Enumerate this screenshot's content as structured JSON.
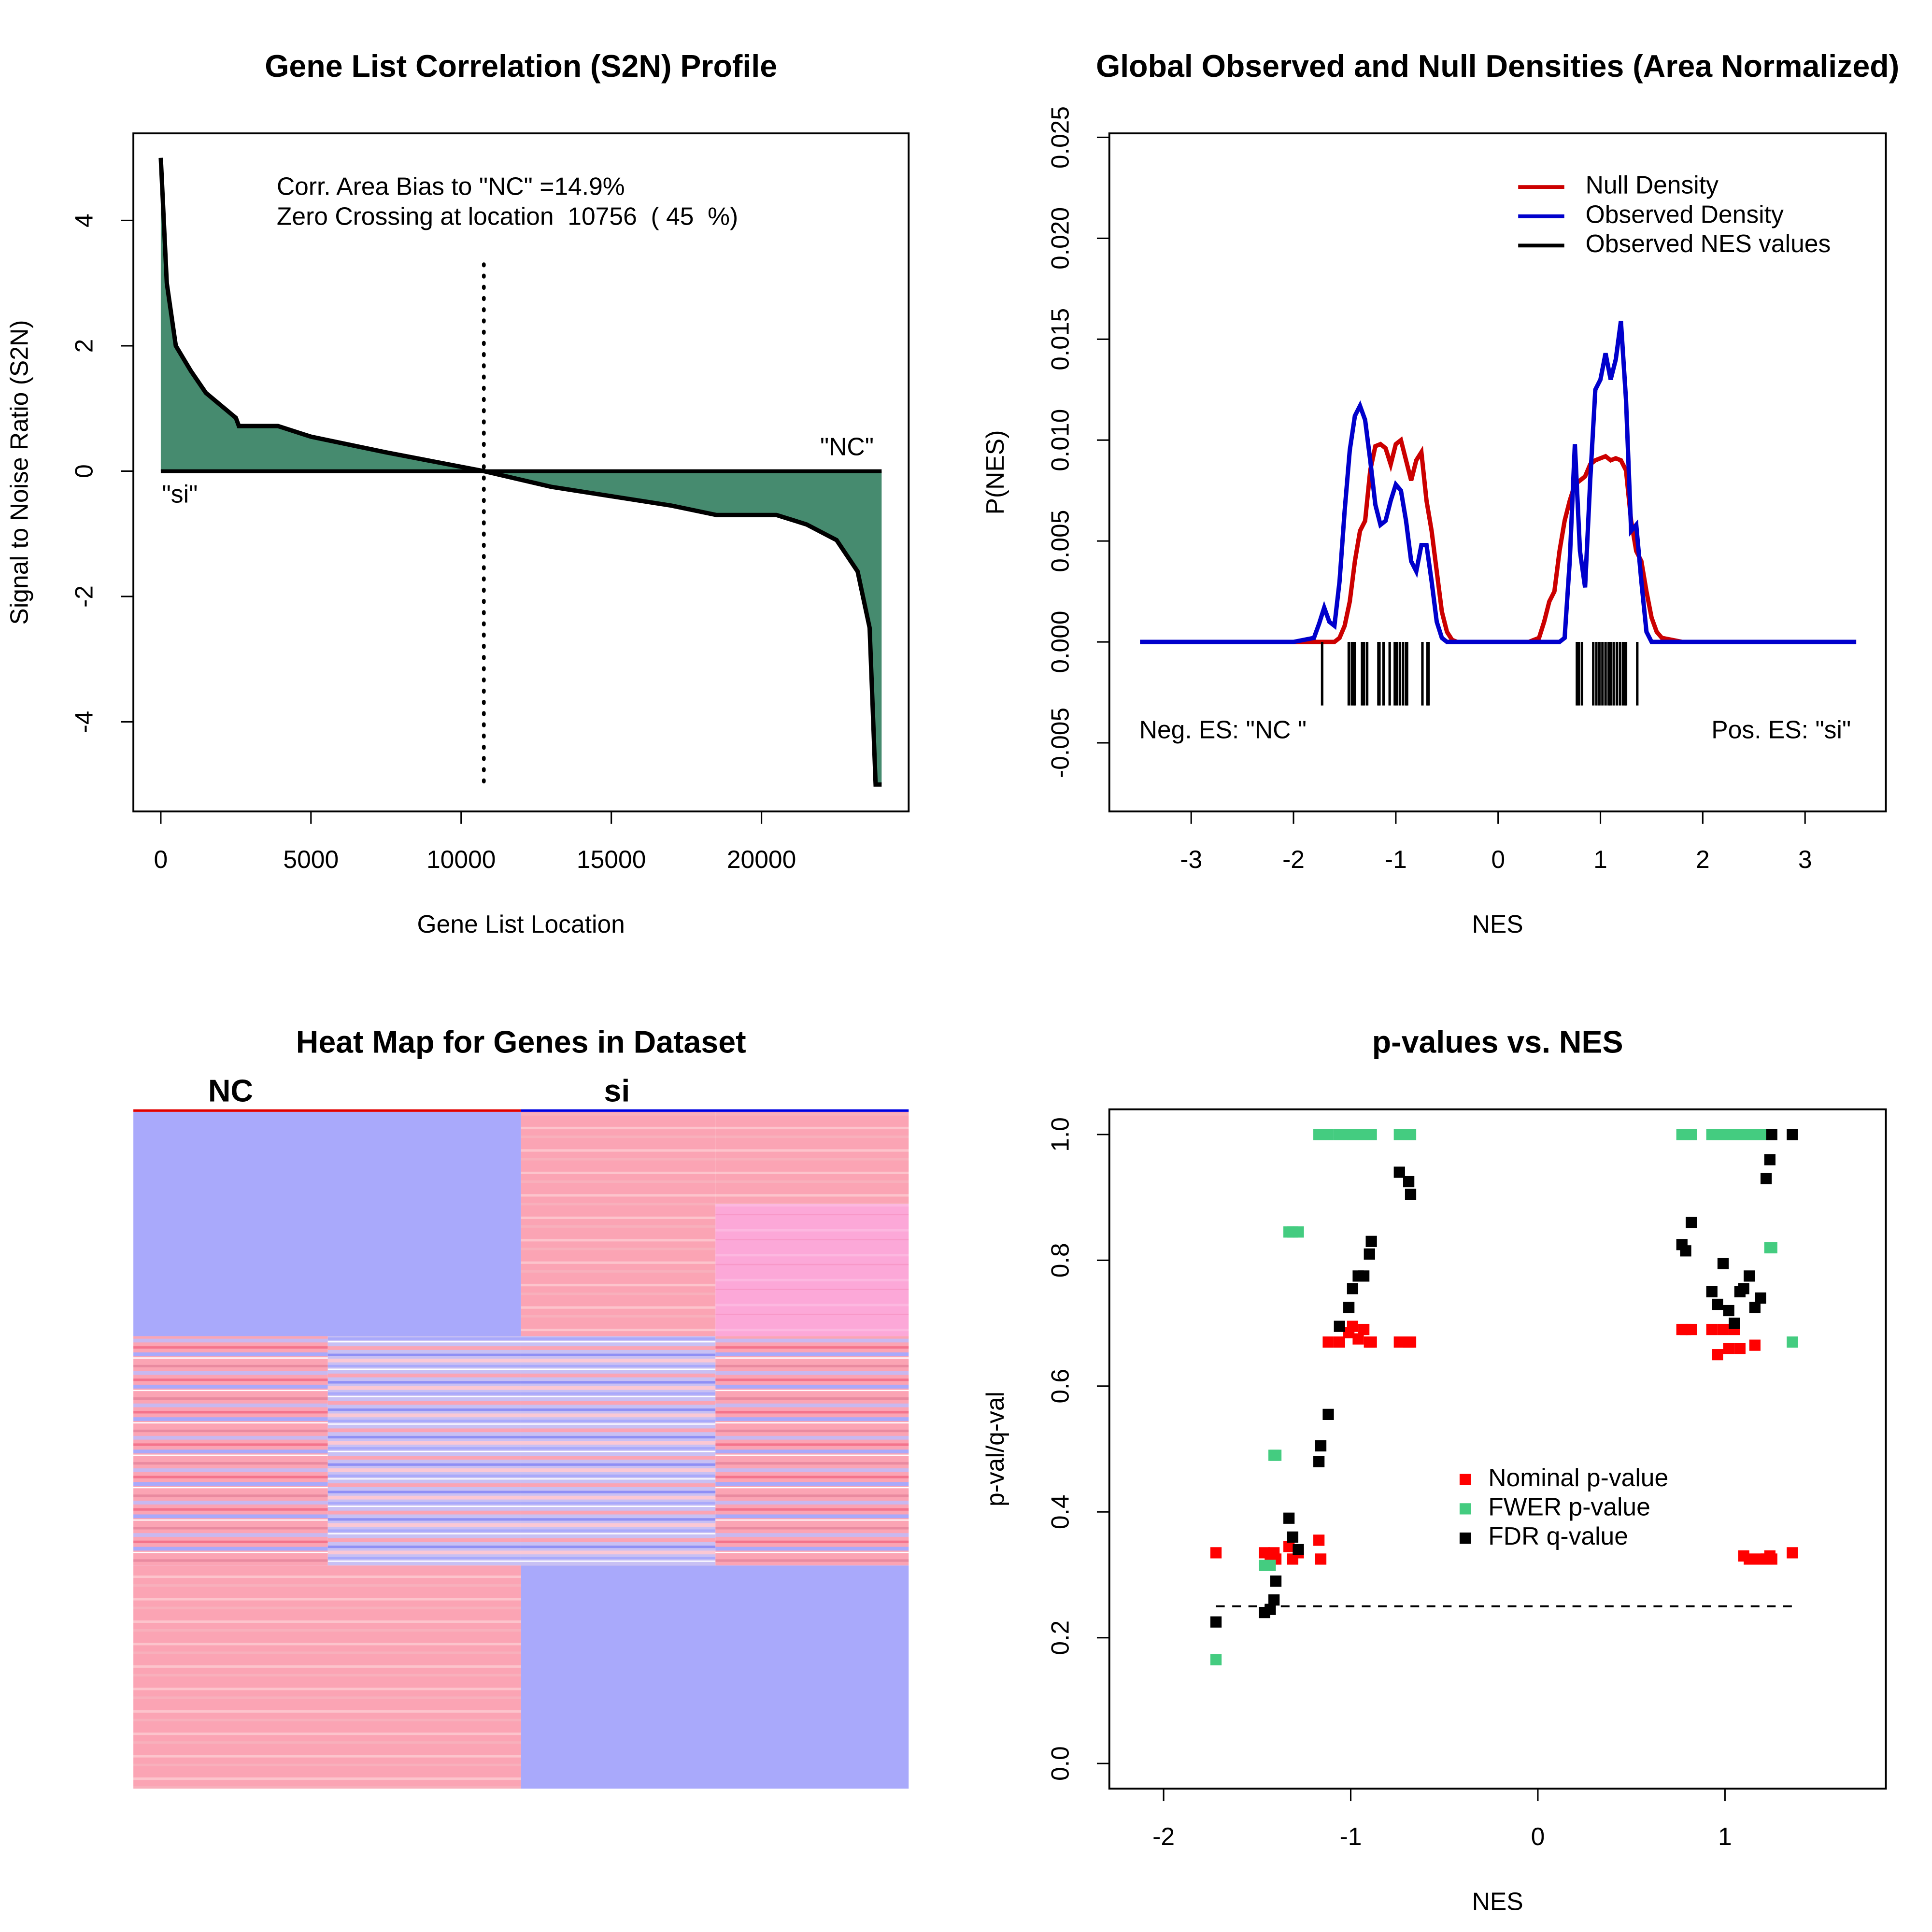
{
  "chart_data": [
    {
      "type": "area",
      "title": "Gene List Correlation (S2N) Profile",
      "xlabel": "Gene List Location",
      "ylabel": "Signal to Noise Ratio (S2N)",
      "annotations": [
        "Corr. Area Bias to \"NC\" =14.9%",
        "Zero Crossing at location  10756  ( 45  %)"
      ],
      "labels": [
        "\"NC\"",
        "\"si\""
      ],
      "zero_crossing": 10756,
      "color": "#468b6f",
      "x": [
        0,
        200,
        500,
        1000,
        1500,
        2500,
        2600,
        3900,
        5000,
        7500,
        10756,
        13000,
        15000,
        17000,
        18500,
        20500,
        21500,
        22500,
        23200,
        23600,
        23800,
        24000
      ],
      "values": [
        5,
        3.0,
        2.0,
        1.6,
        1.25,
        0.85,
        0.72,
        0.72,
        0.55,
        0.3,
        0,
        -0.25,
        -0.4,
        -0.55,
        -0.7,
        -0.7,
        -0.85,
        -1.1,
        -1.6,
        -2.5,
        -5,
        -5
      ],
      "xlim": [
        -913,
        24900
      ],
      "ylim": [
        -5.43,
        5.39
      ],
      "xticks": [
        0,
        5000,
        10000,
        15000,
        20000
      ],
      "yticks": [
        -4,
        -2,
        0,
        2,
        4
      ]
    },
    {
      "type": "line",
      "title": "Global Observed and Null Densities (Area Normalized)",
      "xlabel": "NES",
      "ylabel": "P(NES)",
      "annotations": [
        "Neg. ES: \"NC \"",
        "Pos. ES: \"si\""
      ],
      "x": [
        -3.5,
        -2.0,
        -1.8,
        -1.75,
        -1.7,
        -1.65,
        -1.6,
        -1.55,
        -1.5,
        -1.45,
        -1.4,
        -1.35,
        -1.3,
        -1.25,
        -1.2,
        -1.15,
        -1.1,
        -1.05,
        -1.0,
        -0.95,
        -0.9,
        -0.85,
        -0.8,
        -0.75,
        -0.7,
        -0.65,
        -0.6,
        -0.55,
        -0.5,
        -0.45,
        -0.4,
        -0.3,
        0.3,
        0.4,
        0.45,
        0.5,
        0.55,
        0.6,
        0.65,
        0.7,
        0.75,
        0.8,
        0.85,
        0.9,
        0.95,
        1.0,
        1.05,
        1.1,
        1.15,
        1.2,
        1.25,
        1.3,
        1.35,
        1.4,
        1.45,
        1.5,
        1.55,
        1.6,
        1.7,
        1.8,
        2.0,
        3.5
      ],
      "series": [
        {
          "name": "Null Density",
          "color": "#cc0000",
          "values": [
            0,
            0,
            0,
            0,
            0,
            0,
            0,
            0.0002,
            0.0008,
            0.002,
            0.004,
            0.0055,
            0.006,
            0.0085,
            0.0097,
            0.0098,
            0.0096,
            0.0088,
            0.0098,
            0.01,
            0.009,
            0.008,
            0.009,
            0.0094,
            0.007,
            0.0055,
            0.0035,
            0.0015,
            0.0005,
            0.0001,
            0,
            0,
            0,
            0.0002,
            0.001,
            0.002,
            0.0025,
            0.0045,
            0.006,
            0.007,
            0.0078,
            0.008,
            0.0082,
            0.0088,
            0.009,
            0.0091,
            0.0092,
            0.009,
            0.0091,
            0.009,
            0.0085,
            0.006,
            0.0045,
            0.004,
            0.0025,
            0.0012,
            0.0005,
            0.0002,
            0.0001,
            0,
            0,
            0
          ]
        },
        {
          "name": "Observed Density",
          "color": "#0000cc",
          "values": [
            0,
            0,
            0.0002,
            0.0009,
            0.0017,
            0.001,
            0.0008,
            0.003,
            0.0065,
            0.0095,
            0.0112,
            0.0117,
            0.011,
            0.009,
            0.0068,
            0.0058,
            0.006,
            0.007,
            0.0078,
            0.0075,
            0.006,
            0.004,
            0.0035,
            0.0048,
            0.0048,
            0.003,
            0.001,
            0.0002,
            0,
            0,
            0,
            0,
            0,
            0,
            0,
            0,
            0,
            0,
            0.0002,
            0.004,
            0.0098,
            0.0045,
            0.0027,
            0.008,
            0.0125,
            0.013,
            0.0143,
            0.013,
            0.014,
            0.0159,
            0.012,
            0.0055,
            0.0058,
            0.003,
            0.0005,
            0,
            0,
            0,
            0,
            0,
            0,
            0
          ]
        }
      ],
      "rug": {
        "name": "Observed NES values",
        "color": "#000000",
        "values": [
          -1.72,
          -1.46,
          -1.43,
          -1.41,
          -1.4,
          -1.33,
          -1.31,
          -1.28,
          -1.17,
          -1.16,
          -1.12,
          -1.06,
          -1.01,
          -0.99,
          -0.96,
          -0.93,
          -0.9,
          -0.89,
          -0.74,
          -0.69,
          -0.68,
          0.77,
          0.79,
          0.82,
          0.93,
          0.96,
          0.99,
          1.02,
          1.05,
          1.08,
          1.1,
          1.13,
          1.16,
          1.19,
          1.22,
          1.24,
          1.25,
          1.36
        ]
      },
      "xlim": [
        -3.8,
        3.79
      ],
      "ylim": [
        -0.0084,
        0.0252
      ],
      "xticks": [
        -3,
        -2,
        -1,
        0,
        1,
        2,
        3
      ],
      "yticks": [
        -0.005,
        {
          "value": 0,
          "label": "0.000"
        },
        0.005,
        {
          "value": 0.01,
          "label": "0.010"
        },
        0.015,
        {
          "value": 0.02,
          "label": "0.020"
        },
        0.025
      ]
    },
    {
      "type": "heatmap",
      "title": "Heat Map for Genes in Dataset",
      "column_groups": [
        "NC",
        "si"
      ]
    },
    {
      "type": "scatter",
      "title": "p-values vs. NES",
      "xlabel": "NES",
      "ylabel": "p-val/q-val",
      "hline": 0.25,
      "x": [
        -1.72,
        -1.46,
        -1.43,
        -1.41,
        -1.4,
        -1.33,
        -1.31,
        -1.28,
        -1.17,
        -1.16,
        -1.12,
        -1.06,
        -1.01,
        -0.99,
        -0.96,
        -0.93,
        -0.9,
        -0.89,
        -0.74,
        -0.69,
        -0.68,
        0.77,
        0.79,
        0.82,
        0.93,
        0.96,
        0.99,
        1.02,
        1.05,
        1.08,
        1.1,
        1.13,
        1.16,
        1.19,
        1.22,
        1.24,
        1.25,
        1.36
      ],
      "series": [
        {
          "name": "Nominal p-value",
          "color": "#ff0000",
          "values": [
            0.335,
            0.335,
            0.325,
            0.335,
            0.325,
            0.345,
            0.325,
            0.335,
            0.355,
            0.325,
            0.67,
            0.67,
            0.685,
            0.695,
            0.675,
            0.69,
            0.67,
            0.67,
            0.67,
            0.67,
            0.67,
            0.69,
            0.69,
            0.69,
            0.69,
            0.65,
            0.69,
            0.66,
            0.69,
            0.66,
            0.33,
            0.325,
            0.665,
            0.325,
            0.325,
            0.33,
            0.325,
            0.335
          ]
        },
        {
          "name": "FWER p-value",
          "color": "#44cc80",
          "values": [
            0.165,
            0.315,
            0.315,
            0.49,
            0.49,
            0.845,
            0.845,
            0.845,
            1,
            1,
            1,
            1,
            1,
            1,
            1,
            1,
            1,
            1,
            1,
            1,
            1,
            1,
            1,
            1,
            1,
            1,
            1,
            1,
            1,
            1,
            1,
            1,
            1,
            1,
            1,
            0.82,
            0.82,
            0.67
          ]
        },
        {
          "name": "FDR q-value",
          "color": "#000000",
          "values": [
            0.225,
            0.24,
            0.245,
            0.26,
            0.29,
            0.39,
            0.36,
            0.34,
            0.48,
            0.505,
            0.555,
            0.695,
            0.725,
            0.755,
            0.775,
            0.775,
            0.81,
            0.83,
            0.94,
            0.925,
            0.905,
            0.825,
            0.815,
            0.86,
            0.75,
            0.73,
            0.795,
            0.72,
            0.7,
            0.75,
            0.755,
            0.775,
            0.725,
            0.74,
            0.93,
            0.96,
            1,
            1
          ]
        }
      ],
      "xlim": [
        -2.29,
        1.86
      ],
      "ylim": [
        -0.04,
        1.04
      ],
      "xticks": [
        -2,
        -1,
        0,
        1
      ],
      "yticks": [
        {
          "value": 0,
          "label": "0.0"
        },
        0.2,
        0.4,
        0.6,
        0.8,
        {
          "value": 1,
          "label": "1.0"
        }
      ]
    }
  ]
}
